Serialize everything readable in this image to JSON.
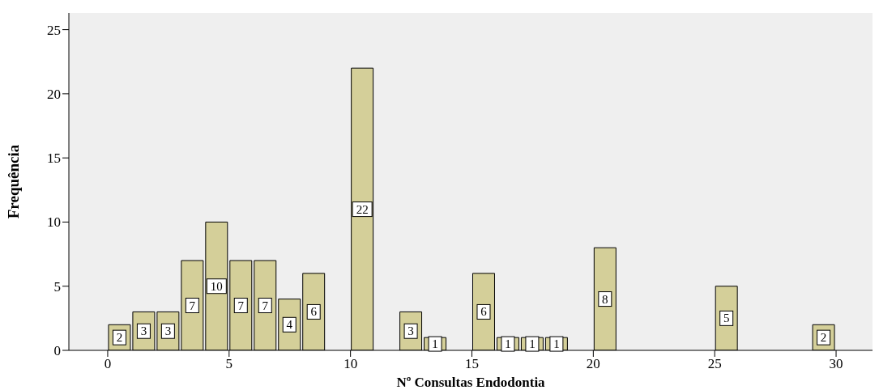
{
  "chart_data": {
    "type": "histogram",
    "xlabel": "Nº Consultas Endodontia",
    "ylabel": "Frequência",
    "bins": [
      0,
      1,
      2,
      3,
      4,
      5,
      6,
      7,
      8,
      9,
      10,
      11,
      12,
      13,
      14,
      15,
      16,
      17,
      18,
      19,
      20,
      21,
      22,
      23,
      24,
      25,
      26,
      27,
      28,
      29,
      30
    ],
    "values": [
      2,
      3,
      3,
      7,
      10,
      7,
      7,
      4,
      6,
      0,
      22,
      0,
      3,
      1,
      0,
      6,
      1,
      1,
      1,
      0,
      8,
      0,
      0,
      0,
      0,
      5,
      0,
      0,
      0,
      2
    ],
    "value_labels": [
      "2",
      "3",
      "3",
      "7",
      "10",
      "7",
      "7",
      "4",
      "6",
      null,
      "22",
      null,
      "3",
      "1",
      null,
      "6",
      "1",
      "1",
      "1",
      null,
      "8",
      null,
      null,
      null,
      null,
      "5",
      null,
      null,
      null,
      "2"
    ],
    "color": "#d4cf99",
    "xlim": [
      -1.6,
      31.5
    ],
    "xticks": [
      0,
      5,
      10,
      15,
      20,
      25,
      30
    ],
    "ylim": [
      0,
      26.3
    ],
    "yticks": [
      0,
      5,
      10,
      15,
      20,
      25
    ],
    "grid": false,
    "legend": false
  }
}
